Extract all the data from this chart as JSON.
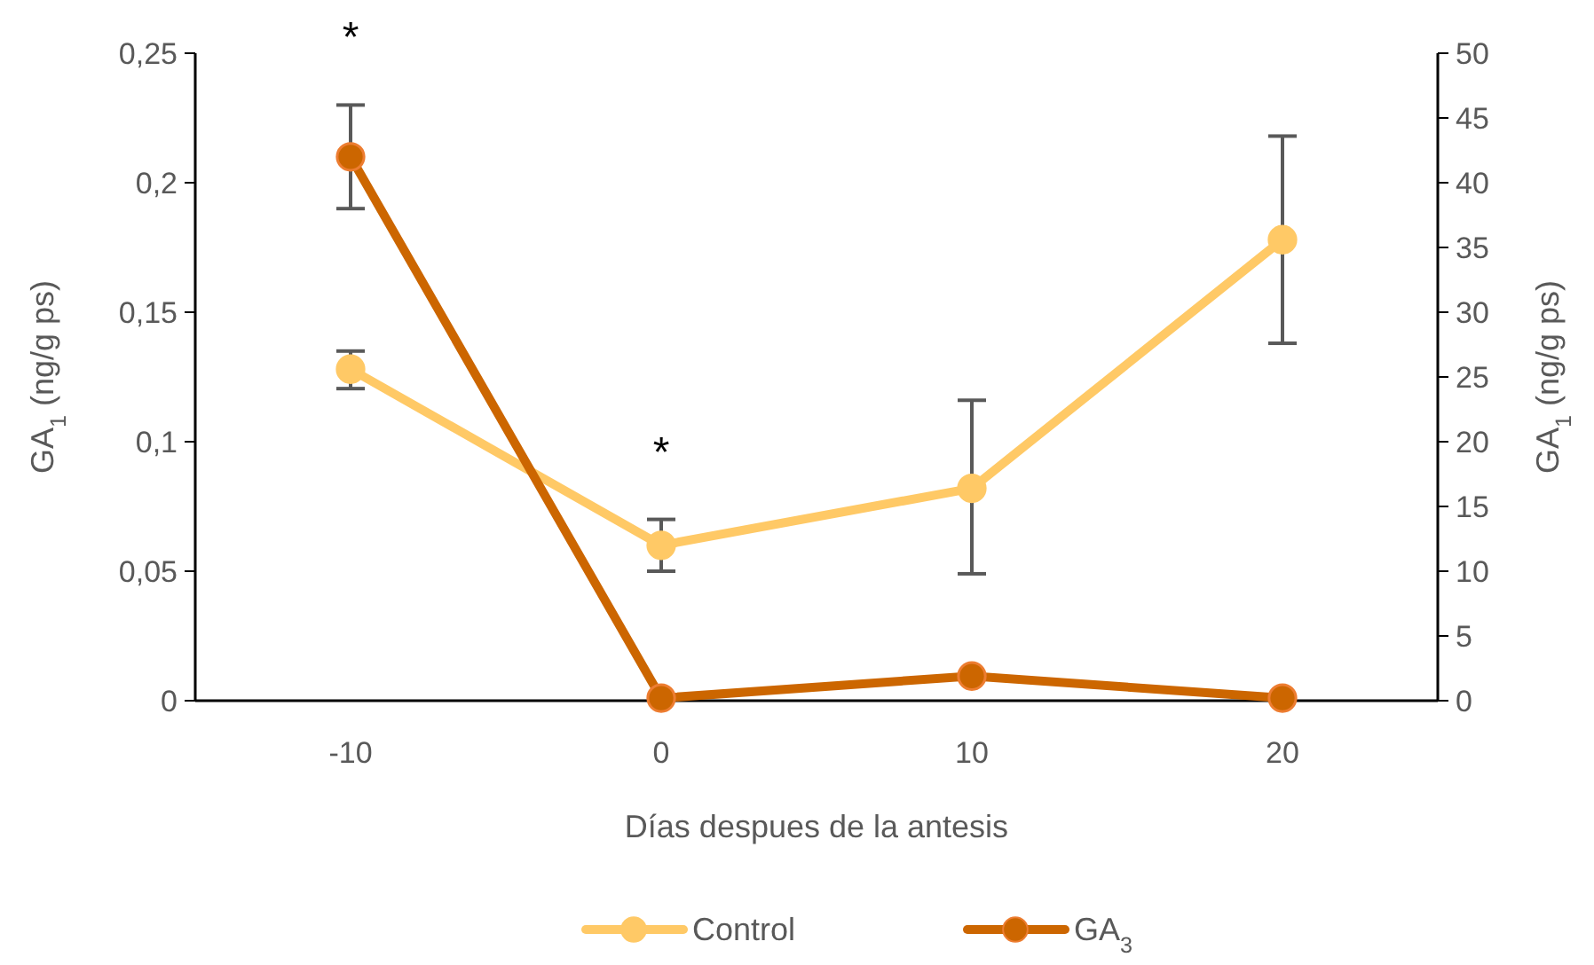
{
  "chart_data": {
    "type": "line",
    "xlabel": "Días despues de la antesis",
    "ylabel": "GA$_{1}$ (ng/g ps)",
    "y2label": "GA$_{1}$ (ng/g ps)",
    "x": [
      -10,
      0,
      10,
      20
    ],
    "xlim": [
      -15,
      25
    ],
    "xticks": [
      -10,
      0,
      10,
      20
    ],
    "ylim": [
      0,
      0.25
    ],
    "yticks": [
      {
        "value": 0,
        "label": "0"
      },
      {
        "value": 0.05,
        "label": "0,05"
      },
      {
        "value": 0.1,
        "label": "0,1"
      },
      {
        "value": 0.15,
        "label": "0,15"
      },
      {
        "value": 0.2,
        "label": "0,2"
      },
      {
        "value": 0.25,
        "label": "0,25"
      }
    ],
    "y2lim": [
      0,
      50
    ],
    "y2ticks": [
      0,
      5,
      10,
      15,
      20,
      25,
      30,
      35,
      40,
      45,
      50
    ],
    "series": [
      {
        "name": "Control",
        "color": "#ffc966",
        "values": [
          0.128,
          0.06,
          0.082,
          0.178
        ],
        "errors": [
          [
            0.1205,
            0.135
          ],
          [
            0.05,
            0.07
          ],
          [
            0.049,
            0.116
          ],
          [
            0.138,
            0.218
          ]
        ]
      },
      {
        "name": "GA$_{3}$",
        "color": "#cc6600",
        "axis": "y2",
        "values": [
          42,
          0.2,
          1.9,
          0.2
        ],
        "errors": [
          [
            38,
            46
          ],
          null,
          null,
          null
        ]
      }
    ],
    "annotations": [
      "*",
      "*"
    ],
    "marker": "circle",
    "legend": "bottom",
    "grid": false
  }
}
